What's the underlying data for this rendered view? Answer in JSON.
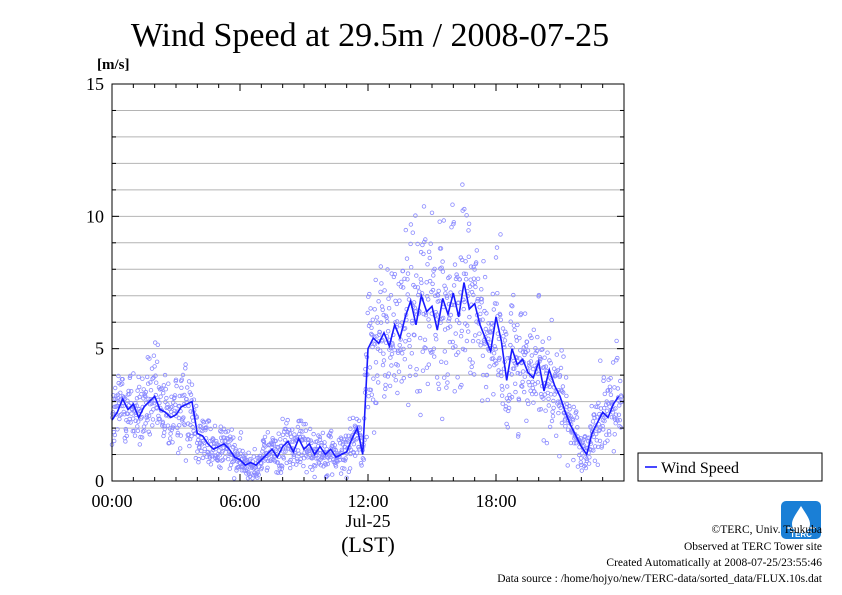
{
  "chart_data": {
    "type": "line",
    "title": "Wind Speed at 29.5m / 2008-07-25",
    "ylabel": "[m/s]",
    "xlabel": "(LST)",
    "date_label": "Jul-25",
    "ylim": [
      0,
      15
    ],
    "xlim_hours": [
      0,
      24
    ],
    "y_ticks": [
      "0",
      "5",
      "10",
      "15"
    ],
    "x_ticks": [
      {
        "hour": 0,
        "label": "00:00"
      },
      {
        "hour": 6,
        "label": "06:00"
      },
      {
        "hour": 12,
        "label": "12:00"
      },
      {
        "hour": 18,
        "label": "18:00"
      }
    ],
    "grid": true,
    "legend_position": "right",
    "series": [
      {
        "name": "Wind Speed",
        "color": "#1a1aff",
        "scatter_color": "#8a8aff",
        "x_hours": [
          0.0,
          0.25,
          0.5,
          0.75,
          1.0,
          1.25,
          1.5,
          1.75,
          2.0,
          2.25,
          2.5,
          2.75,
          3.0,
          3.25,
          3.5,
          3.75,
          4.0,
          4.25,
          4.5,
          4.75,
          5.0,
          5.25,
          5.5,
          5.75,
          6.0,
          6.25,
          6.5,
          6.75,
          7.0,
          7.25,
          7.5,
          7.75,
          8.0,
          8.25,
          8.5,
          8.75,
          9.0,
          9.25,
          9.5,
          9.75,
          10.0,
          10.25,
          10.5,
          10.75,
          11.0,
          11.25,
          11.5,
          11.75,
          12.0,
          12.25,
          12.5,
          12.75,
          13.0,
          13.25,
          13.5,
          13.75,
          14.0,
          14.25,
          14.5,
          14.75,
          15.0,
          15.25,
          15.5,
          15.75,
          16.0,
          16.25,
          16.5,
          16.75,
          17.0,
          17.25,
          17.5,
          17.75,
          18.0,
          18.25,
          18.5,
          18.75,
          19.0,
          19.25,
          19.5,
          19.75,
          20.0,
          20.25,
          20.5,
          20.75,
          21.0,
          21.25,
          21.5,
          21.75,
          22.0,
          22.25,
          22.5,
          22.75,
          23.0,
          23.25,
          23.5,
          23.75
        ],
        "values": [
          2.3,
          2.6,
          3.1,
          2.7,
          2.9,
          2.4,
          2.8,
          3.0,
          3.2,
          2.7,
          2.6,
          2.4,
          2.5,
          2.8,
          2.9,
          3.0,
          1.8,
          1.7,
          1.4,
          1.2,
          1.3,
          1.4,
          1.2,
          0.9,
          0.8,
          0.6,
          0.7,
          0.6,
          0.8,
          1.0,
          1.2,
          0.9,
          1.3,
          1.5,
          1.1,
          1.6,
          1.2,
          1.4,
          1.0,
          1.3,
          1.0,
          1.2,
          0.9,
          1.0,
          1.1,
          1.6,
          2.0,
          1.0,
          5.0,
          5.4,
          5.2,
          5.6,
          5.1,
          5.9,
          5.4,
          6.2,
          6.8,
          5.9,
          7.0,
          6.4,
          6.6,
          5.7,
          6.9,
          6.3,
          7.1,
          6.2,
          7.5,
          6.5,
          6.7,
          5.9,
          5.4,
          4.9,
          6.2,
          5.3,
          3.8,
          5.0,
          4.4,
          4.6,
          4.1,
          3.9,
          4.5,
          3.4,
          4.2,
          3.6,
          3.2,
          2.6,
          2.1,
          1.7,
          1.3,
          1.0,
          1.8,
          2.2,
          2.6,
          2.4,
          2.9,
          3.2
        ]
      }
    ]
  },
  "legend": {
    "label": "Wind Speed"
  },
  "credits": {
    "copyright": "©TERC, Univ. Tsukuba",
    "observed": "Observed at TERC Tower site",
    "created": "Created Automatically at 2008-07-25/23:55:46",
    "source": "Data source : /home/hojyo/new/TERC-data/sorted_data/FLUX.10s.dat"
  },
  "logo": {
    "text": "TERC",
    "color": "#1a7fd6",
    "icon": "terc-logo-icon"
  }
}
